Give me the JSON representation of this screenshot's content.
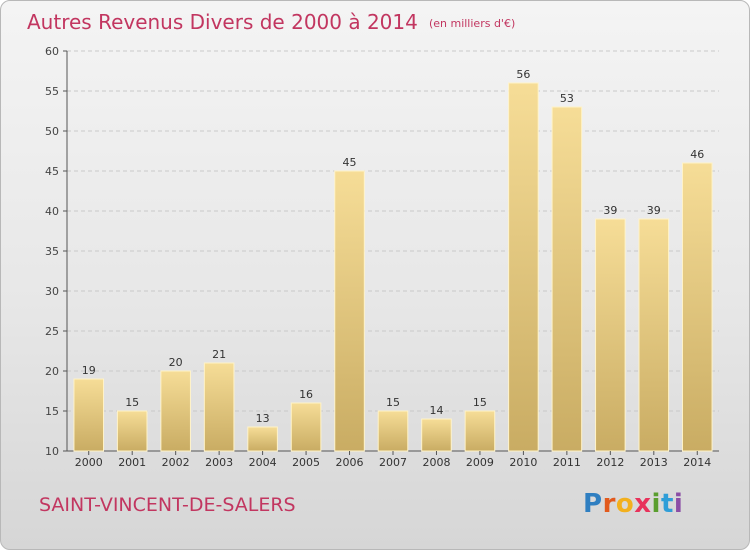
{
  "title": "Autres Revenus Divers de 2000 à 2014",
  "unit": "(en milliers d'€)",
  "commune": "SAINT-VINCENT-DE-SALERS",
  "logo": {
    "letters": [
      "P",
      "r",
      "o",
      "x",
      "i",
      "t",
      "i"
    ],
    "colors": [
      "#2f7fc1",
      "#e25a1d",
      "#f2b01e",
      "#e8325b",
      "#5a9e2f",
      "#2f9ed8",
      "#8b4ea6"
    ]
  },
  "chart_data": {
    "type": "bar",
    "title": "Autres Revenus Divers de 2000 à 2014",
    "categories": [
      "2000",
      "2001",
      "2002",
      "2003",
      "2004",
      "2005",
      "2006",
      "2007",
      "2008",
      "2009",
      "2010",
      "2011",
      "2012",
      "2013",
      "2014"
    ],
    "values": [
      19,
      15,
      20,
      21,
      13,
      16,
      45,
      15,
      14,
      15,
      56,
      53,
      39,
      39,
      46
    ],
    "ylim": [
      10,
      60
    ],
    "yticks": [
      10,
      15,
      20,
      25,
      30,
      35,
      40,
      45,
      50,
      55,
      60
    ],
    "grid": true,
    "bar_color": "#ecd090"
  }
}
